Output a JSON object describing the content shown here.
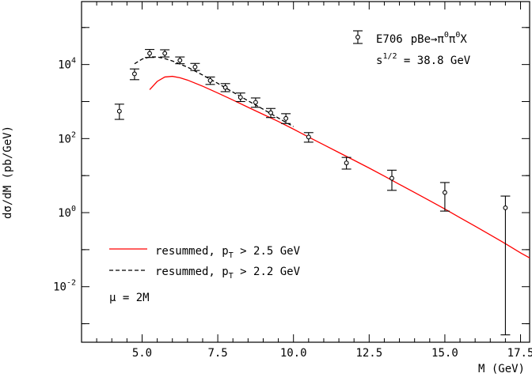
{
  "chart_data": {
    "type": "scatter",
    "xlabel": "M (GeV)",
    "ylabel": "dσ/dM (pb/GeV)",
    "xlim": [
      3.0,
      17.8
    ],
    "ylim_log10": [
      -3.5,
      5.7
    ],
    "yscale": "log",
    "x_ticks": [
      5.0,
      7.5,
      10.0,
      12.5,
      15.0,
      17.5
    ],
    "x_tick_labels": [
      "5.0",
      "7.5",
      "10.0",
      "12.5",
      "15.0",
      "17.5"
    ],
    "y_ticks_log10": [
      -2,
      0,
      2,
      4
    ],
    "y_tick_labels": [
      {
        "base": "10",
        "exp": "-2"
      },
      {
        "base": "10",
        "exp": "0"
      },
      {
        "base": "10",
        "exp": "2"
      },
      {
        "base": "10",
        "exp": "4"
      }
    ],
    "data_series": {
      "name_parts": {
        "experiment": "E706",
        "reaction": "pBe→π",
        "p1": "0",
        "mid": "π",
        "p2": "0",
        "tail": "X"
      },
      "energy_parts": {
        "pre": "s",
        "exp": "1/2",
        "post": " = 38.8 GeV"
      },
      "points": [
        {
          "x": 4.25,
          "y": 550,
          "ylo": 330,
          "yhi": 850
        },
        {
          "x": 4.75,
          "y": 5600,
          "ylo": 3900,
          "yhi": 7600
        },
        {
          "x": 5.25,
          "y": 20000,
          "ylo": 15500,
          "yhi": 25500
        },
        {
          "x": 5.75,
          "y": 20000,
          "ylo": 16000,
          "yhi": 25000
        },
        {
          "x": 6.25,
          "y": 13000,
          "ylo": 10500,
          "yhi": 16000
        },
        {
          "x": 6.75,
          "y": 8600,
          "ylo": 6900,
          "yhi": 10700
        },
        {
          "x": 7.25,
          "y": 3700,
          "ylo": 2900,
          "yhi": 4600
        },
        {
          "x": 7.75,
          "y": 2400,
          "ylo": 1850,
          "yhi": 3050
        },
        {
          "x": 8.25,
          "y": 1300,
          "ylo": 1000,
          "yhi": 1700
        },
        {
          "x": 8.75,
          "y": 950,
          "ylo": 700,
          "yhi": 1250
        },
        {
          "x": 9.25,
          "y": 500,
          "ylo": 370,
          "yhi": 650
        },
        {
          "x": 9.75,
          "y": 350,
          "ylo": 255,
          "yhi": 470
        },
        {
          "x": 10.5,
          "y": 110,
          "ylo": 80,
          "yhi": 145
        },
        {
          "x": 11.75,
          "y": 22,
          "ylo": 15,
          "yhi": 31
        },
        {
          "x": 13.25,
          "y": 8.5,
          "ylo": 4,
          "yhi": 14
        },
        {
          "x": 15.0,
          "y": 3.5,
          "ylo": 1.1,
          "yhi": 6.5
        },
        {
          "x": 17.0,
          "y": 1.35,
          "ylo": 0.0005,
          "yhi": 2.8
        }
      ]
    },
    "curves": [
      {
        "label_parts": {
          "pre": "resummed, p",
          "sub": "T",
          "post": " > 2.5 GeV"
        },
        "color": "#ff0000",
        "dash": "solid",
        "points": [
          [
            5.25,
            2100
          ],
          [
            5.5,
            3500
          ],
          [
            5.75,
            4600
          ],
          [
            6.0,
            4800
          ],
          [
            6.25,
            4400
          ],
          [
            6.5,
            3800
          ],
          [
            7.0,
            2600
          ],
          [
            7.5,
            1700
          ],
          [
            8.0,
            1100
          ],
          [
            8.5,
            700
          ],
          [
            9.0,
            450
          ],
          [
            9.5,
            290
          ],
          [
            10.0,
            180
          ],
          [
            10.5,
            110
          ],
          [
            11.0,
            68
          ],
          [
            11.5,
            42
          ],
          [
            12.0,
            26
          ],
          [
            12.5,
            16
          ],
          [
            13.0,
            9.7
          ],
          [
            13.5,
            5.8
          ],
          [
            14.0,
            3.5
          ],
          [
            14.5,
            2.1
          ],
          [
            15.0,
            1.25
          ],
          [
            15.5,
            0.73
          ],
          [
            16.0,
            0.43
          ],
          [
            16.5,
            0.25
          ],
          [
            17.0,
            0.145
          ],
          [
            17.5,
            0.082
          ],
          [
            17.8,
            0.06
          ]
        ]
      },
      {
        "label_parts": {
          "pre": "resummed, p",
          "sub": "T",
          "post": " > 2.2 GeV"
        },
        "color": "#000000",
        "dash": "dashed",
        "points": [
          [
            4.75,
            10500
          ],
          [
            5.0,
            14000
          ],
          [
            5.25,
            16000
          ],
          [
            5.5,
            16000
          ],
          [
            5.75,
            14500
          ],
          [
            6.0,
            12500
          ],
          [
            6.5,
            8500
          ],
          [
            7.0,
            5200
          ],
          [
            7.5,
            3100
          ],
          [
            8.0,
            1800
          ],
          [
            8.5,
            1050
          ],
          [
            9.0,
            620
          ],
          [
            9.5,
            360
          ],
          [
            10.0,
            210
          ]
        ]
      }
    ],
    "annotation_parts": {
      "symbol": "μ",
      "rest": " = 2M"
    }
  }
}
